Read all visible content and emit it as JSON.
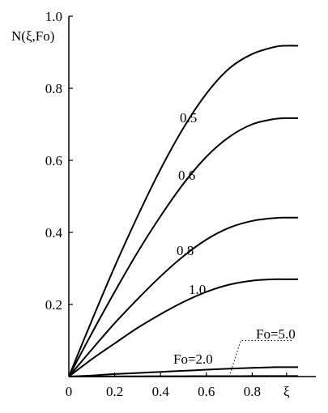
{
  "chart_data": {
    "type": "line",
    "title": "",
    "xlabel": "ξ",
    "ylabel": "N(ξ,Fo)",
    "xlim": [
      0,
      1.0
    ],
    "ylim": [
      0,
      1.0
    ],
    "x_tick_labels": [
      "0",
      "0.2",
      "0.4",
      "0.6",
      "0.8",
      "ξ"
    ],
    "y_tick_labels": [
      "0.2",
      "0.4",
      "0.6",
      "0.8",
      "1.0"
    ],
    "grid": false,
    "legend": "none",
    "x": [
      0,
      0.1,
      0.2,
      0.3,
      0.4,
      0.5,
      0.6,
      0.7,
      0.8,
      0.9,
      0.95,
      1.0
    ],
    "series": [
      {
        "name": "0.5",
        "values": [
          0,
          0.155,
          0.305,
          0.445,
          0.575,
          0.69,
          0.785,
          0.855,
          0.895,
          0.915,
          0.918,
          0.918
        ]
      },
      {
        "name": "0.6",
        "values": [
          0,
          0.12,
          0.235,
          0.345,
          0.445,
          0.535,
          0.61,
          0.665,
          0.7,
          0.715,
          0.717,
          0.717
        ]
      },
      {
        "name": "0.8",
        "values": [
          0,
          0.075,
          0.148,
          0.215,
          0.278,
          0.334,
          0.38,
          0.413,
          0.432,
          0.44,
          0.441,
          0.441
        ]
      },
      {
        "name": "1.0",
        "values": [
          0,
          0.048,
          0.092,
          0.135,
          0.173,
          0.207,
          0.235,
          0.255,
          0.266,
          0.27,
          0.27,
          0.27
        ]
      },
      {
        "name": "Fo=2.0",
        "values": [
          0,
          0.003,
          0.007,
          0.01,
          0.013,
          0.016,
          0.019,
          0.022,
          0.024,
          0.026,
          0.026,
          0.026
        ]
      },
      {
        "name": "Fo=5.0",
        "values": [
          0,
          0.0002,
          0.0004,
          0.0006,
          0.0008,
          0.001,
          0.0011,
          0.0012,
          0.0013,
          0.0013,
          0.0013,
          0.0013
        ]
      }
    ],
    "leader_from": [
      0.7,
      0.0
    ],
    "leader_to": [
      0.75,
      0.1
    ],
    "leader_end": [
      0.98,
      0.1
    ]
  }
}
